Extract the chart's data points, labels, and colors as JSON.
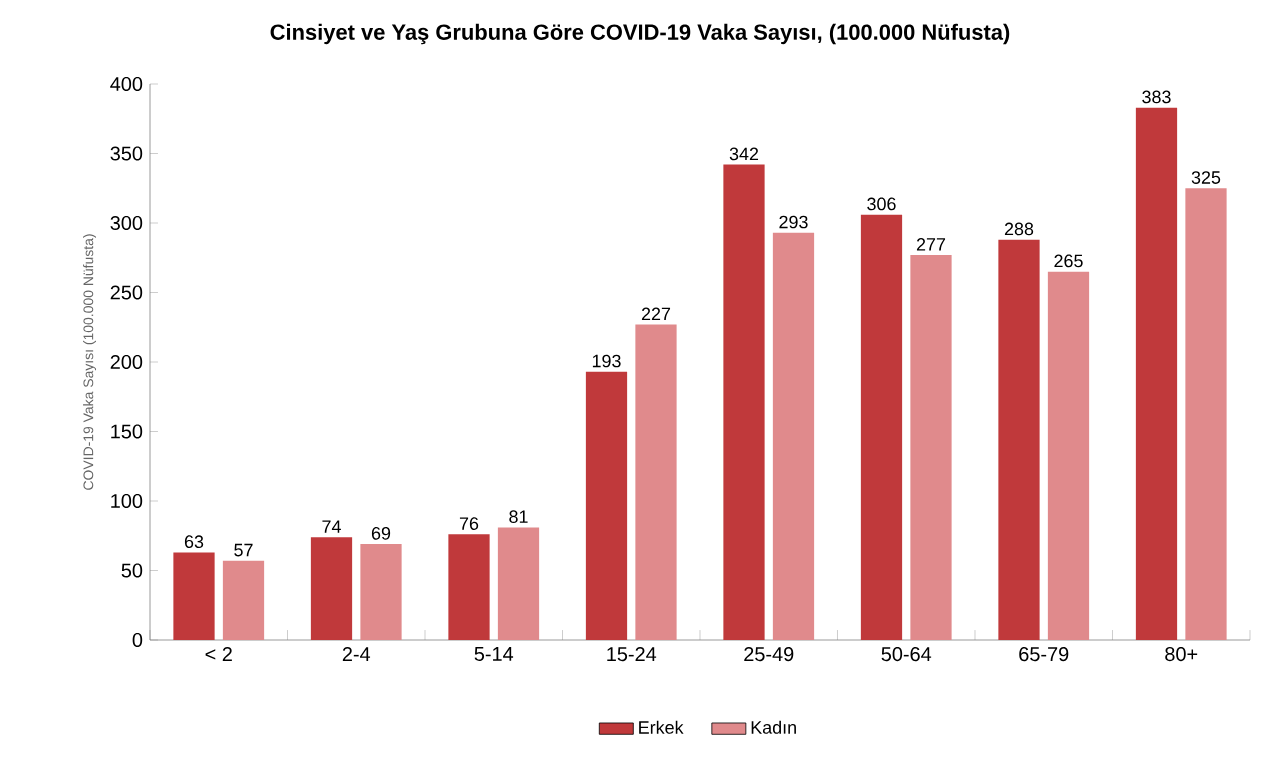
{
  "chart_data": {
    "type": "bar",
    "title": "Cinsiyet ve Yaş Grubuna Göre COVID-19 Vaka Sayısı, (100.000 Nüfusta)",
    "ylabel": "COVID-19 Vaka Sayısı (100.000 Nüfusta)",
    "categories": [
      "< 2",
      "2-4",
      "5-14",
      "15-24",
      "25-49",
      "50-64",
      "65-79",
      "80+"
    ],
    "series": [
      {
        "name": "Erkek",
        "color": "#c0393b",
        "values": [
          63,
          74,
          76,
          193,
          342,
          306,
          288,
          383
        ]
      },
      {
        "name": "Kadın",
        "color": "#e08a8c",
        "values": [
          57,
          69,
          81,
          227,
          293,
          277,
          265,
          325
        ]
      }
    ],
    "ylim": [
      0,
      400
    ],
    "yticks": [
      0,
      50,
      100,
      150,
      200,
      250,
      300,
      350,
      400
    ],
    "data_labels": true,
    "legend": "bottom"
  }
}
